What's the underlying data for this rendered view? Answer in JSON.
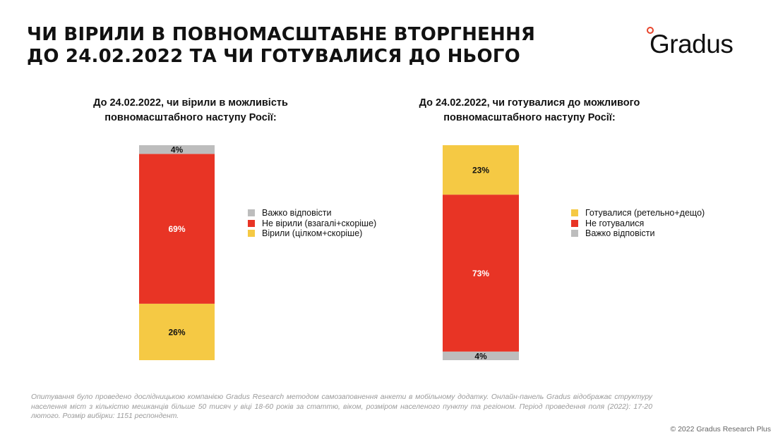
{
  "page": {
    "title_lines": [
      "ЧИ ВІРИЛИ В ПОВНОМАСШТАБНЕ ВТОРГНЕННЯ",
      "ДО 24.02.2022 ТА ЧИ ГОТУВАЛИСЯ ДО НЬОГО"
    ],
    "logo_text": "Gradus",
    "footnote": "Опитування було проведено дослідницькою компанією Gradus Research методом самозаповнення анкети в мобільному додатку. Онлайн-панель Gradus відображає структуру населення міст з кількістю мешканців більше 50 тисяч у віці 18-60 років за статтю, віком, розміром населеного пункту та регіоном. Період проведення поля (2022): 17-20 лютого. Розмір вибірки: 1151 респондент.",
    "copyright": "© 2022 Gradus Research Plus"
  },
  "chart_data": [
    {
      "type": "bar",
      "stacked": true,
      "title_lines": [
        "До 24.02.2022, чи вірили в можливість",
        "повномасштабного наступу Росії:"
      ],
      "ylim": [
        0,
        100
      ],
      "series": [
        {
          "name": "Вірили (цілком+скоріше)",
          "value": 26,
          "label": "26%",
          "color": "#f5c944"
        },
        {
          "name": "Не вірили (взагалі+скоріше)",
          "value": 69,
          "label": "69%",
          "color": "#e83425"
        },
        {
          "name": "Важко відповісти",
          "value": 4,
          "label": "4%",
          "color": "#bdbdbd"
        }
      ],
      "legend_order": [
        "Важко відповісти",
        "Не вірили (взагалі+скоріше)",
        "Вірили (цілком+скоріше)"
      ],
      "legend_position": "right"
    },
    {
      "type": "bar",
      "stacked": true,
      "title_lines": [
        "До 24.02.2022, чи готувалися до можливого",
        "повномасштабного наступу Росії:"
      ],
      "ylim": [
        0,
        100
      ],
      "series": [
        {
          "name": "Важко відповісти",
          "value": 4,
          "label": "4%",
          "color": "#bdbdbd"
        },
        {
          "name": "Не готувалися",
          "value": 73,
          "label": "73%",
          "color": "#e83425"
        },
        {
          "name": "Готувалися (ретельно+дещо)",
          "value": 23,
          "label": "23%",
          "color": "#f5c944"
        }
      ],
      "legend_order": [
        "Готувалися (ретельно+дещо)",
        "Не готувалися",
        "Важко відповісти"
      ],
      "legend_position": "right"
    }
  ]
}
